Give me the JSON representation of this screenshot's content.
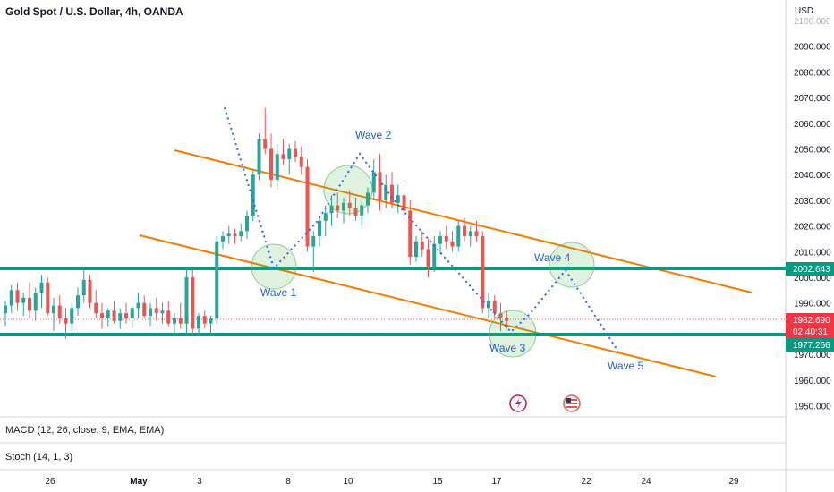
{
  "header": {
    "title": "Gold Spot / U.S. Dollar, 4h, OANDA"
  },
  "price_axis": {
    "currency": "USD",
    "ticks": [
      "2100.000",
      "2090.000",
      "2080.000",
      "2070.000",
      "2060.000",
      "2050.000",
      "2040.000",
      "2030.000",
      "2020.000",
      "2010.000",
      "2000.000",
      "1990.000",
      "1980.000",
      "1970.000",
      "1960.000",
      "1950.000"
    ]
  },
  "badges": {
    "resistance": "2002.643",
    "last_price": "1982.690",
    "countdown": "02:40:31",
    "support": "1977.266"
  },
  "time_axis": {
    "ticks": [
      "26",
      "May",
      "3",
      "8",
      "10",
      "15",
      "17",
      "22",
      "24",
      "29"
    ]
  },
  "indicators": {
    "macd": "MACD (12, 26, close, 9, EMA, EMA)",
    "stoch": "Stoch (14, 1, 3)"
  },
  "colors": {
    "up": "#26a69a",
    "down": "#ef5350",
    "level": "#089981",
    "channel": "#f57c00",
    "wave": "#2962ff",
    "circle": "#4caf50"
  },
  "chart_data": {
    "type": "candlestick",
    "title": "Gold Spot / U.S. Dollar, 4h, OANDA",
    "ylabel": "USD",
    "ylim": [
      1945,
      2105
    ],
    "ohlc_approx": [
      [
        1986,
        1991,
        1981,
        1989
      ],
      [
        1989,
        1997,
        1986,
        1995
      ],
      [
        1995,
        1998,
        1987,
        1990
      ],
      [
        1990,
        1994,
        1985,
        1992
      ],
      [
        1992,
        1998,
        1984,
        1987
      ],
      [
        1987,
        1996,
        1983,
        1994
      ],
      [
        1994,
        2001,
        1988,
        1998
      ],
      [
        1998,
        2000,
        1985,
        1986
      ],
      [
        1986,
        1992,
        1979,
        1989
      ],
      [
        1989,
        1993,
        1982,
        1984
      ],
      [
        1984,
        1988,
        1976,
        1982
      ],
      [
        1982,
        1990,
        1979,
        1988
      ],
      [
        1988,
        1996,
        1985,
        1993
      ],
      [
        1993,
        2003,
        1990,
        1999
      ],
      [
        1999,
        2001,
        1988,
        1990
      ],
      [
        1990,
        1995,
        1984,
        1986
      ],
      [
        1986,
        1990,
        1980,
        1984
      ],
      [
        1984,
        1988,
        1981,
        1987
      ],
      [
        1987,
        1991,
        1982,
        1983
      ],
      [
        1983,
        1988,
        1980,
        1986
      ],
      [
        1986,
        1990,
        1982,
        1984
      ],
      [
        1984,
        1989,
        1980,
        1988
      ],
      [
        1988,
        1994,
        1984,
        1990
      ],
      [
        1990,
        1993,
        1984,
        1985
      ],
      [
        1985,
        1990,
        1981,
        1988
      ],
      [
        1988,
        1992,
        1983,
        1986
      ],
      [
        1986,
        1990,
        1982,
        1987
      ],
      [
        1987,
        1991,
        1981,
        1982
      ],
      [
        1982,
        1986,
        1978,
        1984
      ],
      [
        1984,
        1990,
        1980,
        1982
      ],
      [
        1982,
        2003,
        1978,
        2000
      ],
      [
        2000,
        2003,
        1978,
        1980
      ],
      [
        1980,
        1986,
        1977,
        1985
      ],
      [
        1985,
        1987,
        1980,
        1982
      ],
      [
        1982,
        1985,
        1977,
        1984
      ],
      [
        1984,
        2016,
        1982,
        2014
      ],
      [
        2014,
        2018,
        2011,
        2016
      ],
      [
        2016,
        2020,
        2013,
        2017
      ],
      [
        2017,
        2019,
        2013,
        2016
      ],
      [
        2016,
        2021,
        2014,
        2018
      ],
      [
        2018,
        2026,
        2015,
        2024
      ],
      [
        2024,
        2042,
        2022,
        2040
      ],
      [
        2040,
        2056,
        2038,
        2054
      ],
      [
        2054,
        2066,
        2048,
        2050
      ],
      [
        2050,
        2056,
        2035,
        2038
      ],
      [
        2038,
        2052,
        2034,
        2048
      ],
      [
        2048,
        2054,
        2044,
        2046
      ],
      [
        2046,
        2052,
        2040,
        2050
      ],
      [
        2050,
        2053,
        2045,
        2047
      ],
      [
        2047,
        2051,
        2040,
        2043
      ],
      [
        2043,
        2046,
        2010,
        2012
      ],
      [
        2012,
        2018,
        2002,
        2016
      ],
      [
        2016,
        2024,
        2012,
        2022
      ],
      [
        2022,
        2028,
        2016,
        2025
      ],
      [
        2025,
        2032,
        2020,
        2028
      ],
      [
        2028,
        2033,
        2023,
        2026
      ],
      [
        2026,
        2031,
        2021,
        2029
      ],
      [
        2029,
        2034,
        2024,
        2027
      ],
      [
        2027,
        2031,
        2022,
        2024
      ],
      [
        2024,
        2030,
        2020,
        2028
      ],
      [
        2028,
        2035,
        2025,
        2033
      ],
      [
        2033,
        2046,
        2030,
        2041
      ],
      [
        2041,
        2048,
        2026,
        2030
      ],
      [
        2030,
        2040,
        2027,
        2036
      ],
      [
        2036,
        2041,
        2027,
        2029
      ],
      [
        2029,
        2036,
        2025,
        2032
      ],
      [
        2032,
        2038,
        2024,
        2026
      ],
      [
        2026,
        2030,
        2005,
        2008
      ],
      [
        2008,
        2016,
        2006,
        2014
      ],
      [
        2014,
        2018,
        2008,
        2011
      ],
      [
        2011,
        2015,
        2000,
        2004
      ],
      [
        2004,
        2016,
        2002,
        2013
      ],
      [
        2013,
        2018,
        2009,
        2016
      ],
      [
        2016,
        2020,
        2011,
        2014
      ],
      [
        2014,
        2018,
        2010,
        2012
      ],
      [
        2012,
        2022,
        2010,
        2020
      ],
      [
        2020,
        2023,
        2014,
        2016
      ],
      [
        2016,
        2020,
        2012,
        2018
      ],
      [
        2018,
        2022,
        2014,
        2016
      ],
      [
        2016,
        2018,
        1986,
        1988
      ],
      [
        1988,
        1994,
        1984,
        1991
      ],
      [
        1991,
        1993,
        1984,
        1986
      ],
      [
        1986,
        1990,
        1979,
        1984
      ],
      [
        1984,
        1987,
        1980,
        1983
      ]
    ],
    "levels": [
      2002.643,
      1977.266
    ],
    "annotations": [
      "Wave 1",
      "Wave 2",
      "Wave 3",
      "Wave 4",
      "Wave 5"
    ]
  }
}
